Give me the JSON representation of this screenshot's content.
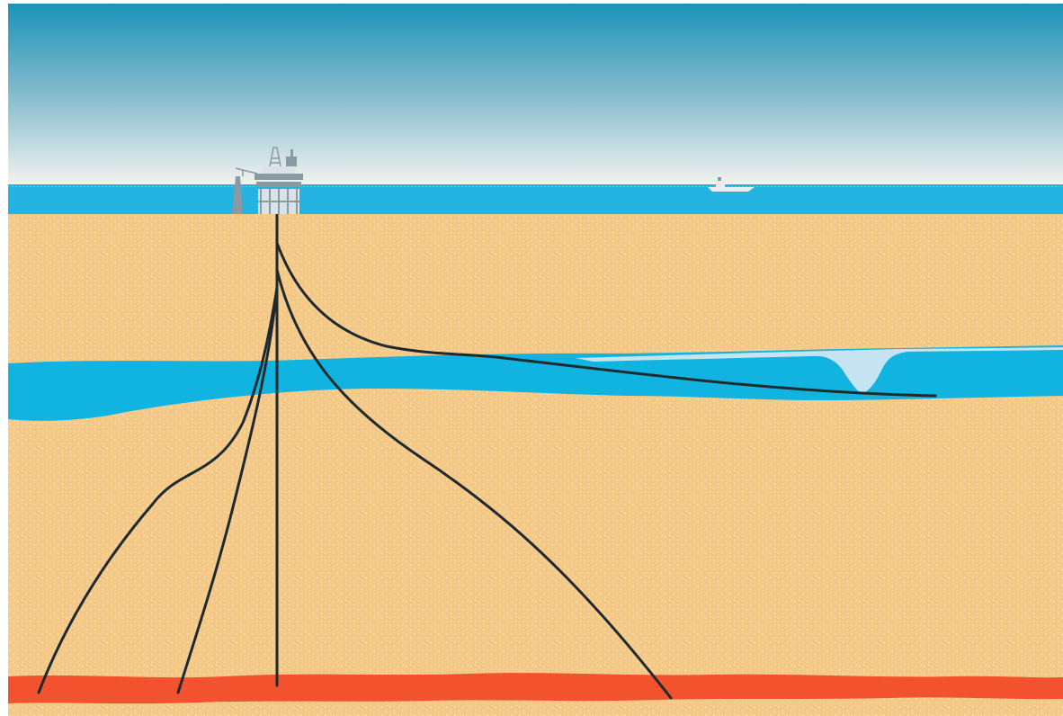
{
  "colors": {
    "sky_top": "#1a93b8",
    "sky_mid": "#86bccd",
    "sky_horizon": "#f4f4ef",
    "sea": "#25b3e2",
    "sea_shallow": "#8ed6f0",
    "sediment": "#f4c887",
    "sediment_speckle": "#fff4d2",
    "aquifer": "#11b3e0",
    "gas_cap": "#c6e3f1",
    "reservoir": "#f2522e",
    "wellbore": "#1f2a2e",
    "platform": "#8a9aa2",
    "platform_light": "#d9e3e8",
    "vessel": "#e8eef0"
  },
  "elements": {
    "platform": "offshore-production-platform",
    "vessel": "supply-vessel",
    "wells": [
      "deviated-well-far-left",
      "deviated-well-left",
      "vertical-well",
      "deviated-well-right",
      "horizontal-well"
    ],
    "layers": [
      "sky",
      "sea",
      "sediment",
      "aquifer-layer",
      "gas-cap",
      "reservoir-layer"
    ]
  }
}
